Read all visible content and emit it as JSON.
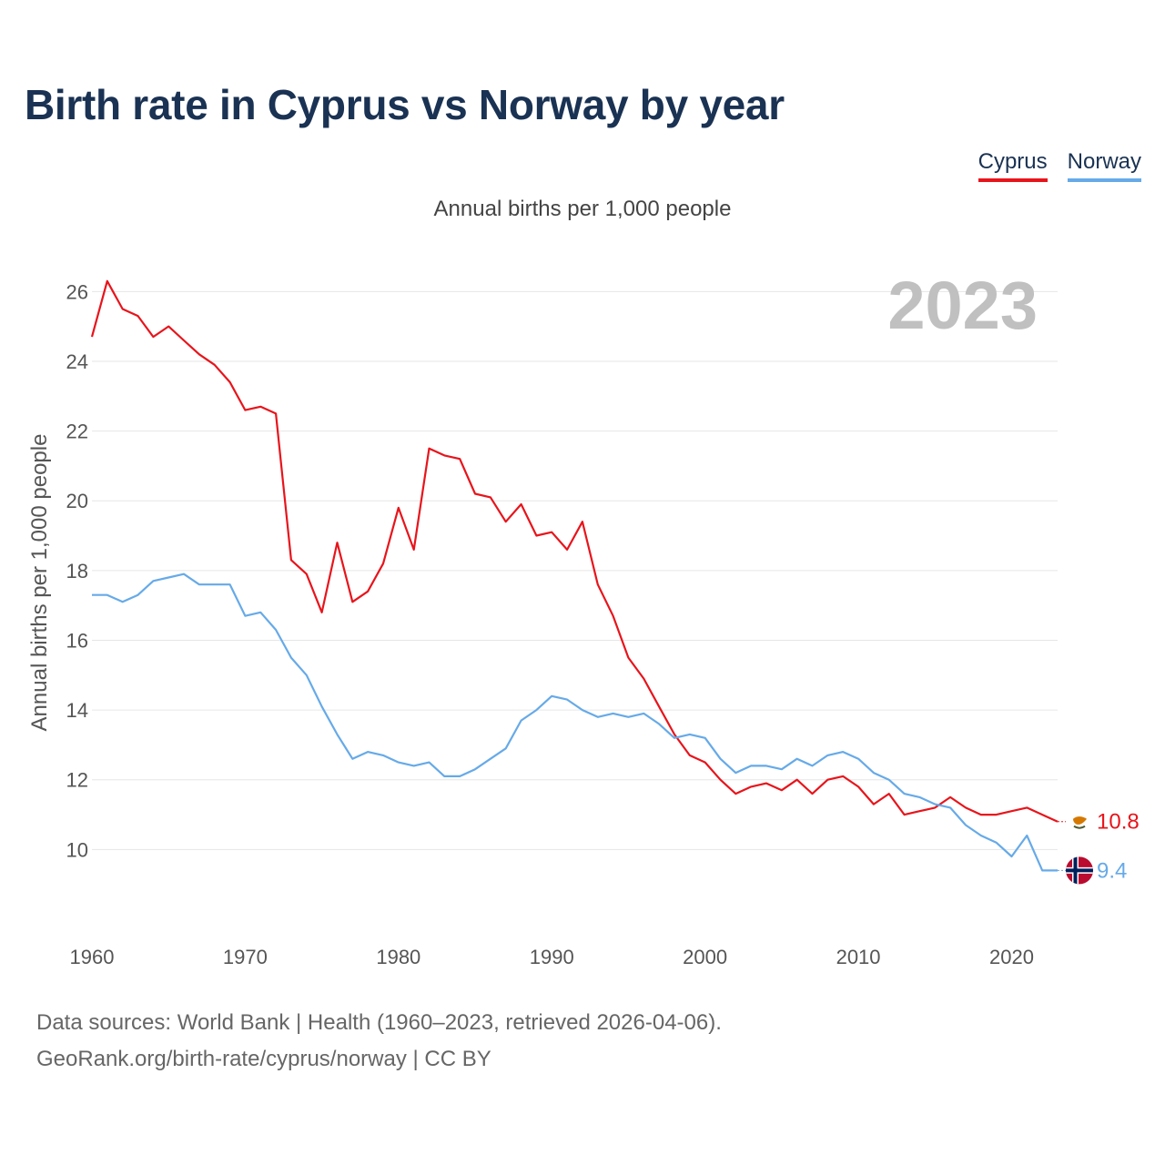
{
  "title": "Birth rate in Cyprus vs Norway by year",
  "subtitle": "Annual births per 1,000 people",
  "legend": [
    {
      "name": "Cyprus",
      "color": "#e8141b"
    },
    {
      "name": "Norway",
      "color": "#66aae8"
    }
  ],
  "source": {
    "line1": "Data sources: World Bank | Health (1960–2023, retrieved 2026-04-06).",
    "line2": "GeoRank.org/birth-rate/cyprus/norway | CC BY"
  },
  "chart_data": {
    "type": "line",
    "title": "Birth rate in Cyprus vs Norway by year",
    "ylabel": "Annual births per 1,000 people",
    "xlabel": "",
    "year_label": "2023",
    "xlim": [
      1960,
      2023
    ],
    "ylim": [
      8,
      27
    ],
    "grid": true,
    "x_ticks": [
      "1960",
      "1970",
      "1980",
      "1990",
      "2000",
      "2010",
      "2020"
    ],
    "y_ticks": [
      "10",
      "12",
      "14",
      "16",
      "18",
      "20",
      "22",
      "24",
      "26"
    ],
    "x": [
      1960,
      1961,
      1962,
      1963,
      1964,
      1965,
      1966,
      1967,
      1968,
      1969,
      1970,
      1971,
      1972,
      1973,
      1974,
      1975,
      1976,
      1977,
      1978,
      1979,
      1980,
      1981,
      1982,
      1983,
      1984,
      1985,
      1986,
      1987,
      1988,
      1989,
      1990,
      1991,
      1992,
      1993,
      1994,
      1995,
      1996,
      1997,
      1998,
      1999,
      2000,
      2001,
      2002,
      2003,
      2004,
      2005,
      2006,
      2007,
      2008,
      2009,
      2010,
      2011,
      2012,
      2013,
      2014,
      2015,
      2016,
      2017,
      2018,
      2019,
      2020,
      2021,
      2022,
      2023
    ],
    "series": [
      {
        "name": "Cyprus",
        "color": "#e8141b",
        "end_label": "10.8",
        "flag": "cyprus-flag-icon",
        "values": [
          24.7,
          26.3,
          25.5,
          25.3,
          24.7,
          25.0,
          24.6,
          24.2,
          23.9,
          23.4,
          22.6,
          22.7,
          22.5,
          18.3,
          17.9,
          16.8,
          18.8,
          17.1,
          17.4,
          18.2,
          19.8,
          18.6,
          21.5,
          21.3,
          21.2,
          20.2,
          20.1,
          19.4,
          19.9,
          19.0,
          19.1,
          18.6,
          19.4,
          17.6,
          16.7,
          15.5,
          14.9,
          14.1,
          13.3,
          12.7,
          12.5,
          12.0,
          11.6,
          11.8,
          11.9,
          11.7,
          12.0,
          11.6,
          12.0,
          12.1,
          11.8,
          11.3,
          11.6,
          11.0,
          11.1,
          11.2,
          11.5,
          11.2,
          11.0,
          11.0,
          11.1,
          11.2,
          11.0,
          10.8
        ]
      },
      {
        "name": "Norway",
        "color": "#66aae8",
        "end_label": "9.4",
        "flag": "norway-flag-icon",
        "values": [
          17.3,
          17.3,
          17.1,
          17.3,
          17.7,
          17.8,
          17.9,
          17.6,
          17.6,
          17.6,
          16.7,
          16.8,
          16.3,
          15.5,
          15.0,
          14.1,
          13.3,
          12.6,
          12.8,
          12.7,
          12.5,
          12.4,
          12.5,
          12.1,
          12.1,
          12.3,
          12.6,
          12.9,
          13.7,
          14.0,
          14.4,
          14.3,
          14.0,
          13.8,
          13.9,
          13.8,
          13.9,
          13.6,
          13.2,
          13.3,
          13.2,
          12.6,
          12.2,
          12.4,
          12.4,
          12.3,
          12.6,
          12.4,
          12.7,
          12.8,
          12.6,
          12.2,
          12.0,
          11.6,
          11.5,
          11.3,
          11.2,
          10.7,
          10.4,
          10.2,
          9.8,
          10.4,
          9.4,
          9.4
        ]
      }
    ]
  }
}
